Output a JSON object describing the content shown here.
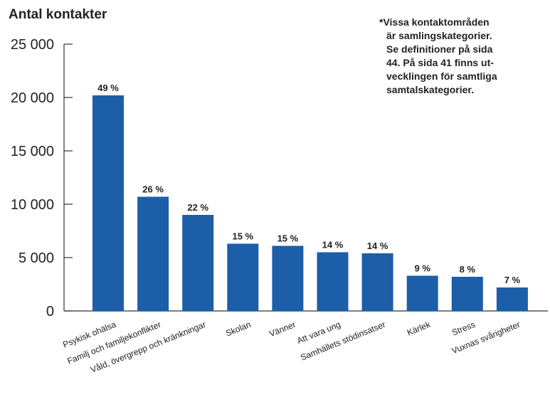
{
  "chart_data": {
    "type": "bar",
    "title": "",
    "xlabel": "",
    "ylabel": "Antal kontakter",
    "ylim": [
      0,
      25000
    ],
    "yticks": [
      0,
      5000,
      10000,
      15000,
      20000,
      25000
    ],
    "ytick_labels": [
      "0",
      "5 000",
      "10 000",
      "15 000",
      "20 000",
      "25 000"
    ],
    "categories": [
      "Psykisk ohälsa",
      "Familj och familjekonflikter",
      "Våld, övergrepp och kränkningar",
      "Skolan",
      "Vänner",
      "Att vara ung",
      "Samhällets stödinsatser",
      "Kärlek",
      "Stress",
      "Vuxnas svårigheter"
    ],
    "values": [
      20200,
      10700,
      9000,
      6300,
      6100,
      5500,
      5400,
      3300,
      3200,
      2200
    ],
    "data_labels": [
      "49 %",
      "26 %",
      "22 %",
      "15 %",
      "15 %",
      "14 %",
      "14 %",
      "9 %",
      "8 %",
      "7 %"
    ],
    "bar_color": "#1c5ea8",
    "grid": false,
    "note_lines": [
      "*Vissa kontaktområden",
      "är samlingskategorier.",
      "Se definitioner på sida",
      "44. På sida 41 finns ut-",
      "vecklingen för samtliga",
      "samtalskategorier."
    ]
  }
}
